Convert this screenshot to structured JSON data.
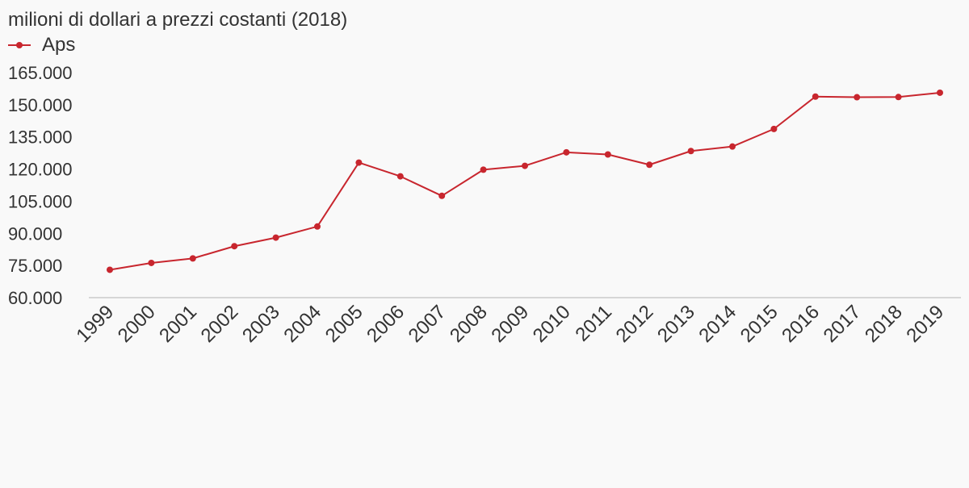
{
  "chart_data": {
    "type": "line",
    "title": "milioni di dollari a prezzi costanti (2018)",
    "legend_position": "top-left",
    "grid": false,
    "x": [
      "1999",
      "2000",
      "2001",
      "2002",
      "2003",
      "2004",
      "2005",
      "2006",
      "2007",
      "2008",
      "2009",
      "2010",
      "2011",
      "2012",
      "2013",
      "2014",
      "2015",
      "2016",
      "2017",
      "2018",
      "2019"
    ],
    "ylim": [
      60000,
      165000
    ],
    "yticks": [
      60000,
      75000,
      90000,
      105000,
      120000,
      135000,
      150000,
      165000
    ],
    "ytick_labels": [
      "60.000",
      "75.000",
      "90.000",
      "105.000",
      "120.000",
      "135.000",
      "150.000",
      "165.000"
    ],
    "series": [
      {
        "name": "Aps",
        "color": "#c8262e",
        "values": [
          73000,
          76200,
          78300,
          84000,
          88000,
          93200,
          123000,
          116600,
          107500,
          119700,
          121500,
          127800,
          126800,
          122000,
          128400,
          130500,
          138700,
          153800,
          153500,
          153600,
          155600
        ]
      }
    ]
  }
}
